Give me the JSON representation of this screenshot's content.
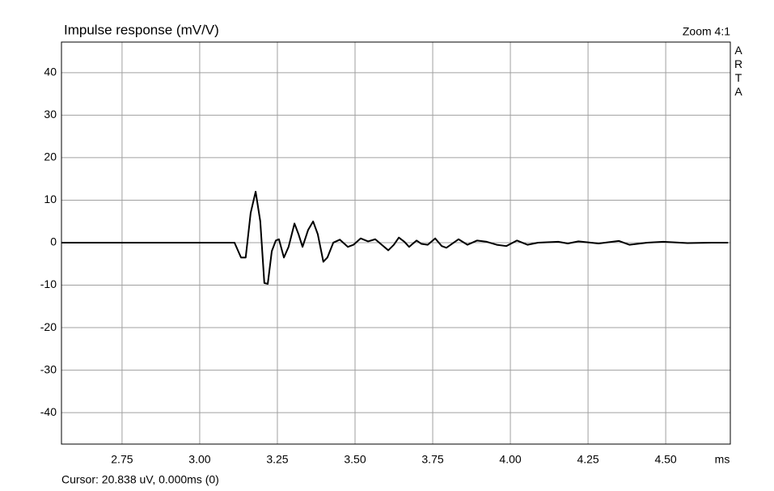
{
  "chart_data": {
    "type": "line",
    "title": "Impulse response (mV/V)",
    "zoom_label": "Zoom 4:1",
    "brand": "ARTA",
    "x_label": "ms",
    "cursor_text": "Cursor: 20.838 uV, 0.000ms (0)",
    "x": [
      2.555,
      3.112,
      3.133,
      3.148,
      3.164,
      3.18,
      3.195,
      3.208,
      3.219,
      3.232,
      3.245,
      3.255,
      3.271,
      3.286,
      3.305,
      3.318,
      3.331,
      3.349,
      3.365,
      3.38,
      3.398,
      3.411,
      3.43,
      3.451,
      3.477,
      3.495,
      3.518,
      3.542,
      3.565,
      3.586,
      3.607,
      3.625,
      3.641,
      3.659,
      3.674,
      3.698,
      3.714,
      3.734,
      3.758,
      3.779,
      3.794,
      3.833,
      3.862,
      3.893,
      3.924,
      3.956,
      3.987,
      4.021,
      4.055,
      4.089,
      4.154,
      4.185,
      4.219,
      4.284,
      4.349,
      4.383,
      4.44,
      4.492,
      4.57,
      4.648,
      4.701
    ],
    "series": [
      {
        "color": "#000000",
        "values": [
          0,
          0,
          -3.5,
          -3.5,
          7,
          12,
          5,
          -9.5,
          -9.7,
          -2,
          0.5,
          0.8,
          -3.5,
          -1,
          4.5,
          2,
          -1,
          3,
          5,
          2,
          -4.5,
          -3.5,
          0,
          0.7,
          -1,
          -0.5,
          1,
          0.3,
          0.8,
          -0.5,
          -1.8,
          -0.5,
          1.2,
          0.2,
          -1,
          0.5,
          -0.3,
          -0.5,
          1,
          -0.8,
          -1.2,
          0.8,
          -0.5,
          0.5,
          0.2,
          -0.5,
          -0.8,
          0.5,
          -0.5,
          0,
          0.2,
          -0.2,
          0.3,
          -0.2,
          0.4,
          -0.5,
          0,
          0.2,
          -0.1,
          0,
          0
        ]
      }
    ],
    "xlim": [
      2.555,
      4.708
    ],
    "ylim": [
      -47.4,
      47.2
    ],
    "xticks": [
      2.75,
      {
        "value": 3.0,
        "label": "3.00"
      },
      3.25,
      {
        "value": 3.5,
        "label": "3.50"
      },
      3.75,
      {
        "value": 4.0,
        "label": "4.00"
      },
      4.25,
      {
        "value": 4.5,
        "label": "4.50"
      }
    ],
    "yticks": [
      -40,
      -30,
      -20,
      -10,
      0,
      10,
      20,
      30,
      40
    ],
    "grid": true
  }
}
